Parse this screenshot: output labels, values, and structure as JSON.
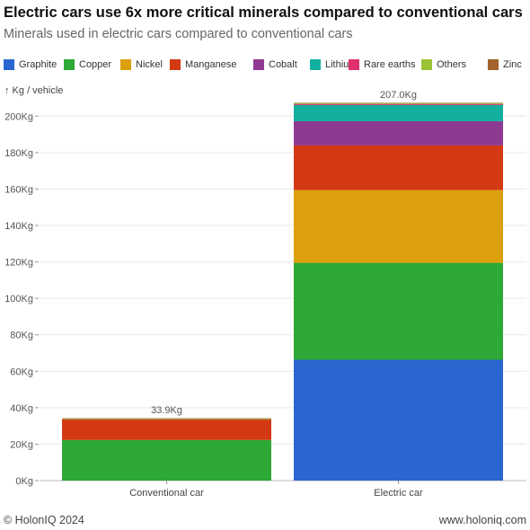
{
  "header": {
    "title": "Electric cars use 6x more critical minerals compared to conventional cars",
    "subtitle": "Minerals used in electric cars compared to conventional cars"
  },
  "legend": [
    {
      "label": "Graphite",
      "color": "#2b65d0"
    },
    {
      "label": "Copper",
      "color": "#2ea836"
    },
    {
      "label": "Nickel",
      "color": "#dca00e"
    },
    {
      "label": "Manganese",
      "color": "#d33a14"
    },
    {
      "label": "Cobalt",
      "color": "#8f3a92"
    },
    {
      "label": "Lithium",
      "color": "#13b0a0"
    },
    {
      "label": "Rare earths",
      "color": "#e0306f"
    },
    {
      "label": "Others",
      "color": "#9bc236"
    },
    {
      "label": "Zinc",
      "color": "#a0642c"
    }
  ],
  "chart_data": {
    "type": "bar",
    "stacked": true,
    "ylabel": "↑ Kg / vehicle",
    "ylim": [
      0,
      210
    ],
    "yticks": [
      0,
      20,
      40,
      60,
      80,
      100,
      120,
      140,
      160,
      180,
      200
    ],
    "ytick_suffix": "Kg",
    "grid": true,
    "legend_position": "top",
    "categories": [
      "Conventional car",
      "Electric car"
    ],
    "totals": [
      "33.9Kg",
      "207.0Kg"
    ],
    "series": [
      {
        "name": "Graphite",
        "values": [
          0,
          66.3
        ]
      },
      {
        "name": "Copper",
        "values": [
          22.3,
          53.2
        ]
      },
      {
        "name": "Nickel",
        "values": [
          0,
          39.9
        ]
      },
      {
        "name": "Manganese",
        "values": [
          11.2,
          24.5
        ]
      },
      {
        "name": "Cobalt",
        "values": [
          0,
          13.3
        ]
      },
      {
        "name": "Lithium",
        "values": [
          0,
          8.9
        ]
      },
      {
        "name": "Rare earths",
        "values": [
          0,
          0.5
        ]
      },
      {
        "name": "Others",
        "values": [
          0.3,
          0.3
        ]
      },
      {
        "name": "Zinc",
        "values": [
          0.1,
          0.1
        ]
      }
    ]
  },
  "footer": {
    "copyright": "© HolonIQ 2024",
    "website": "www.holoniq.com"
  }
}
